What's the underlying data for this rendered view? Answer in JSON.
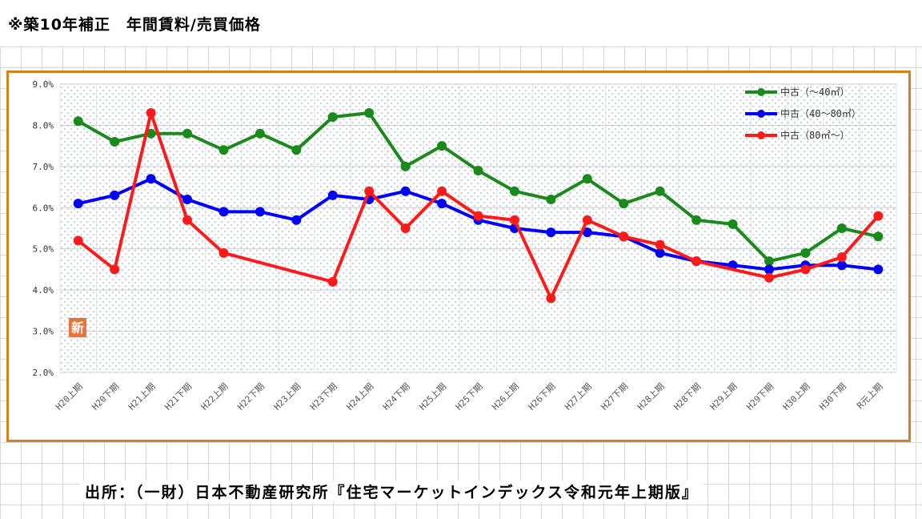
{
  "title": "※築10年補正　年間賃料/売買価格",
  "source": "出所：（一財）日本不動産研究所『住宅マーケットインデックス令和元年上期版』",
  "badge": "新",
  "colors": {
    "frame": "#d97d1f",
    "series": [
      "#1a8a1a",
      "#0000ff",
      "#ff1a1a"
    ],
    "badge": "#e8743a"
  },
  "chart_data": {
    "type": "line",
    "title": "",
    "xlabel": "",
    "ylabel": "",
    "ylim": [
      2.0,
      9.0
    ],
    "yticks": [
      "2.0%",
      "3.0%",
      "4.0%",
      "5.0%",
      "6.0%",
      "7.0%",
      "8.0%",
      "9.0%"
    ],
    "grid": true,
    "legend": "top-right",
    "categories": [
      "H20上期",
      "H20下期",
      "H21上期",
      "H21下期",
      "H22上期",
      "H22下期",
      "H23上期",
      "H23下期",
      "H24上期",
      "H24下期",
      "H25上期",
      "H25下期",
      "H26上期",
      "H26下期",
      "H27上期",
      "H27下期",
      "H28上期",
      "H28下期",
      "H29上期",
      "H29下期",
      "H30上期",
      "H30下期",
      "R元上期"
    ],
    "series": [
      {
        "name": "中古（～40㎡）",
        "color": "#1a8a1a",
        "values": [
          8.1,
          7.6,
          7.8,
          7.8,
          7.4,
          7.8,
          7.4,
          8.2,
          8.3,
          7.0,
          7.5,
          6.9,
          6.4,
          6.2,
          6.7,
          6.1,
          6.4,
          5.7,
          5.6,
          4.7,
          4.9,
          5.5,
          5.3
        ]
      },
      {
        "name": "中古（40～80㎡）",
        "color": "#0000ff",
        "values": [
          6.1,
          6.3,
          6.7,
          6.2,
          5.9,
          5.9,
          5.7,
          6.3,
          6.2,
          6.4,
          6.1,
          5.7,
          5.5,
          5.4,
          5.4,
          5.3,
          4.9,
          4.7,
          4.6,
          4.5,
          4.6,
          4.6,
          4.5
        ]
      },
      {
        "name": "中古（80㎡～）",
        "color": "#ff1a1a",
        "values": [
          5.2,
          4.5,
          8.3,
          5.7,
          4.9,
          null,
          null,
          4.2,
          6.4,
          5.5,
          6.4,
          5.8,
          5.7,
          3.8,
          5.7,
          5.3,
          5.1,
          4.7,
          null,
          4.3,
          4.5,
          4.8,
          5.8
        ]
      }
    ]
  }
}
